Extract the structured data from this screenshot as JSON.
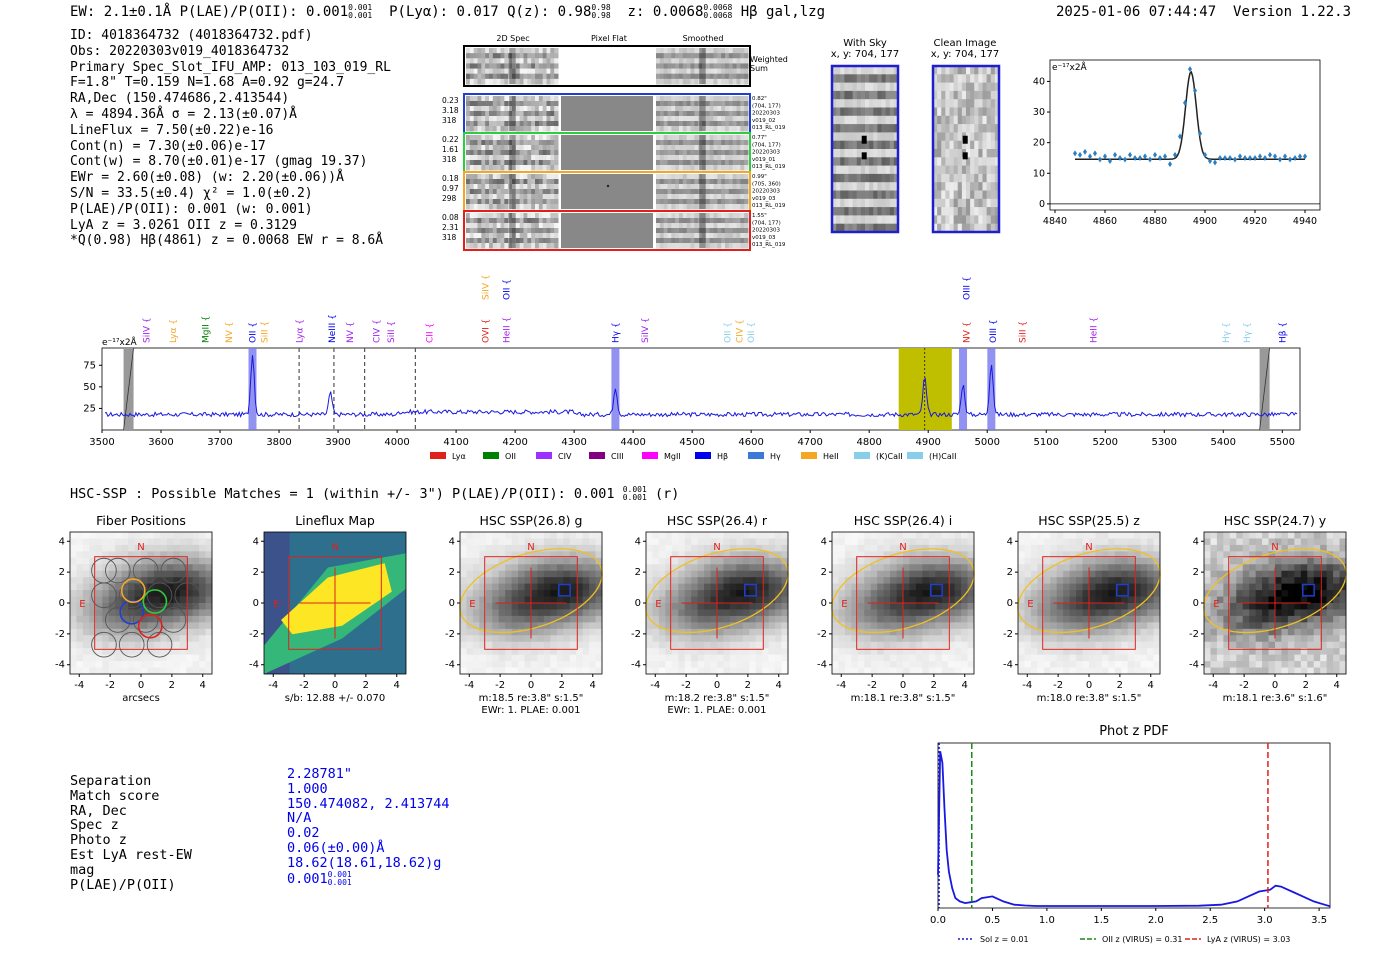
{
  "header": {
    "left": "EW: 2.1±0.1Å  P(LAE)/P(OII): 0.001",
    "left_sup": "0.001",
    "left_sub": "0.001",
    "plya": "P(Lyα): 0.017  Q(z): 0.98",
    "q_sup": "0.98",
    "q_sub": "0.98",
    "z": "z: 0.0068",
    "z_sup": "0.0068",
    "z_sub": "0.0068",
    "tail": "Hβ  gal,lzg",
    "datetime": "2025-01-06 07:44:47",
    "version": "Version 1.22.3"
  },
  "info": {
    "lines": [
      "ID: 4018364732 (4018364732.pdf)",
      "Obs: 20220303v019_4018364732",
      "Primary Spec_Slot_IFU_AMP: 013_103_019_RL",
      "F=1.8\"  T=0.159  N=1.68  A=0.92  g=24.7",
      "RA,Dec (150.474686,2.413544)",
      "λ = 4894.36Å  σ = 2.13(±0.07)Å",
      "LineFlux = 7.50(±0.22)e-16",
      "Cont(n) = 7.30(±0.06)e-17",
      "Cont(w) = 8.70(±0.01)e-17 (gmag 19.37)",
      "EWr = 2.60(±0.08) (w: 2.20(±0.06))Å",
      "S/N = 33.5(±0.4)  χ² = 1.0(±0.2)",
      "P(LAE)/P(OII): 0.001 (w: 0.001)",
      "LyA z = 3.0261  OII z = 0.3129",
      "*Q(0.98) Hβ(4861) z = 0.0068  EW r = 8.6Å"
    ]
  },
  "cutouts": {
    "col_titles": [
      "2D Spec",
      "Pixel Flat",
      "Smoothed"
    ],
    "weighted_label": "Weighted Sum",
    "rows": [
      {
        "stats": [
          "0.23",
          "3.18",
          "318"
        ],
        "meta": [
          "0.82\"",
          "(704, 177)",
          "20220303",
          "v019_02",
          "013_RL_019"
        ],
        "color": "#1f3fd0"
      },
      {
        "stats": [
          "0.22",
          "1.61",
          "318"
        ],
        "meta": [
          "0.77\"",
          "(704, 177)",
          "20220303",
          "v019_01",
          "013_RL_019"
        ],
        "color": "#2ecc40"
      },
      {
        "stats": [
          "0.18",
          "0.97",
          "298"
        ],
        "meta": [
          "0.99\"",
          "(705, 360)",
          "20220303",
          "v019_03",
          "013_RL_019"
        ],
        "color": "#f5a623"
      },
      {
        "stats": [
          "0.08",
          "2.31",
          "318"
        ],
        "meta": [
          "1.55\"",
          "(704, 177)",
          "20220303",
          "v019_03",
          "013_RL_019"
        ],
        "color": "#e0201b"
      }
    ],
    "with_sky_title": "With Sky",
    "with_sky_coords": "x, y: 704, 177",
    "clean_title": "Clean Image",
    "clean_coords": "x, y: 704, 177"
  },
  "line_zoom": {
    "unit": "e⁻¹⁷x2Å",
    "x": [
      4848,
      4850,
      4852,
      4854,
      4856,
      4858,
      4860,
      4862,
      4864,
      4866,
      4868,
      4870,
      4872,
      4874,
      4876,
      4878,
      4880,
      4882,
      4884,
      4886,
      4888,
      4890,
      4892,
      4894,
      4896,
      4898,
      4900,
      4902,
      4904,
      4906,
      4908,
      4910,
      4912,
      4914,
      4916,
      4918,
      4920,
      4922,
      4924,
      4926,
      4928,
      4930,
      4932,
      4934,
      4936,
      4938,
      4940
    ],
    "y": [
      16.5,
      16,
      17,
      15.5,
      16.5,
      14.5,
      15.5,
      14,
      16,
      15,
      14.5,
      16,
      15,
      15,
      15.5,
      14.5,
      16,
      15,
      15.5,
      13,
      16,
      22,
      33,
      44,
      37,
      23,
      16,
      14,
      13.5,
      15,
      15,
      15,
      14.5,
      15.5,
      15,
      15,
      15,
      15.5,
      15,
      16,
      15.5,
      14.5,
      15.5,
      14.5,
      15,
      15.5,
      15.5
    ],
    "fit": {
      "center": 4894.36,
      "sigma": 2.13,
      "cont": 14.6,
      "amp": 28.5
    },
    "xlim": [
      4838,
      4946
    ],
    "ylim": [
      -2,
      47
    ],
    "xticks": [
      "4840",
      "4860",
      "4880",
      "4900",
      "4920",
      "4940"
    ],
    "yticks": [
      "0",
      "10",
      "20",
      "30",
      "40"
    ]
  },
  "spectrum": {
    "unit": "e⁻¹⁷x2Å",
    "xlim": [
      3500,
      5530
    ],
    "ylim": [
      0,
      95
    ],
    "xticks": [
      "3500",
      "3600",
      "3700",
      "3800",
      "3900",
      "4000",
      "4100",
      "4200",
      "4300",
      "4400",
      "4500",
      "4600",
      "4700",
      "4800",
      "4900",
      "5000",
      "5100",
      "5200",
      "5300",
      "5400",
      "5500"
    ],
    "yticks": [
      "25",
      "50",
      "75"
    ],
    "baseline": 18,
    "lines_peaks": [
      {
        "w": 3755,
        "h": 70
      },
      {
        "w": 3887,
        "h": 25
      },
      {
        "w": 4370,
        "h": 32
      },
      {
        "w": 4894,
        "h": 43
      },
      {
        "w": 4959,
        "h": 35
      },
      {
        "w": 5007,
        "h": 60
      }
    ],
    "line_labels": [
      {
        "w": 3575,
        "t": "SiIV",
        "c": "#a020f0",
        "lvl": 0
      },
      {
        "w": 3620,
        "t": "Lyα",
        "c": "#f5a623",
        "lvl": 0
      },
      {
        "w": 3675,
        "t": "MgII",
        "c": "#008000",
        "lvl": 0
      },
      {
        "w": 3715,
        "t": "NV",
        "c": "#f5a623",
        "lvl": 0
      },
      {
        "w": 3755,
        "t": "OII",
        "c": "#0000ee",
        "lvl": 0
      },
      {
        "w": 3775,
        "t": "SiII",
        "c": "#f5a623",
        "lvl": 0
      },
      {
        "w": 3835,
        "t": "Lyα",
        "c": "#a020f0",
        "lvl": 0
      },
      {
        "w": 3890,
        "t": "NeIII",
        "c": "#0000ee",
        "lvl": 0
      },
      {
        "w": 3920,
        "t": "NV",
        "c": "#a020f0",
        "lvl": 0
      },
      {
        "w": 3965,
        "t": "CIV",
        "c": "#a020f0",
        "lvl": 0
      },
      {
        "w": 3990,
        "t": "SiII",
        "c": "#a020f0",
        "lvl": 0
      },
      {
        "w": 4055,
        "t": "CII",
        "c": "#ff00ff",
        "lvl": 0
      },
      {
        "w": 4150,
        "t": "OVI",
        "c": "#e0201b",
        "lvl": 0
      },
      {
        "w": 4185,
        "t": "HeII",
        "c": "#a020f0",
        "lvl": 0
      },
      {
        "w": 4150,
        "t": "SiIV",
        "c": "#f5a623",
        "lvl": 1
      },
      {
        "w": 4185,
        "t": "OII",
        "c": "#0000ee",
        "lvl": 1
      },
      {
        "w": 4370,
        "t": "Hγ",
        "c": "#0000ee",
        "lvl": 0
      },
      {
        "w": 4420,
        "t": "SiIV",
        "c": "#a020f0",
        "lvl": 0
      },
      {
        "w": 4560,
        "t": "OII",
        "c": "#87ceeb",
        "lvl": 0
      },
      {
        "w": 4580,
        "t": "CIV",
        "c": "#f5a623",
        "lvl": 0
      },
      {
        "w": 4600,
        "t": "OII",
        "c": "#87ceeb",
        "lvl": 0
      },
      {
        "w": 4965,
        "t": "NV",
        "c": "#e0201b",
        "lvl": 0
      },
      {
        "w": 4965,
        "t": "OIII",
        "c": "#0000ee",
        "lvl": 1
      },
      {
        "w": 5010,
        "t": "OIII",
        "c": "#0000ee",
        "lvl": 0
      },
      {
        "w": 5060,
        "t": "SiII",
        "c": "#e0201b",
        "lvl": 0
      },
      {
        "w": 5180,
        "t": "HeII",
        "c": "#a020f0",
        "lvl": 0
      },
      {
        "w": 5405,
        "t": "Hγ",
        "c": "#87ceeb",
        "lvl": 0
      },
      {
        "w": 5440,
        "t": "Hγ",
        "c": "#87ceeb",
        "lvl": 0
      },
      {
        "w": 5500,
        "t": "Hβ",
        "c": "#0000ee",
        "lvl": 0
      }
    ],
    "dashed_lines": [
      3834,
      3893,
      3945,
      4031
    ],
    "legend": [
      {
        "label": "Lyα",
        "color": "#e0201b"
      },
      {
        "label": "OII",
        "color": "#008000"
      },
      {
        "label": "CIV",
        "color": "#9b30ff"
      },
      {
        "label": "CIII",
        "color": "#800080"
      },
      {
        "label": "MgII",
        "color": "#ff00ff"
      },
      {
        "label": "Hβ",
        "color": "#0000ee"
      },
      {
        "label": "Hγ",
        "color": "#3c78d8"
      },
      {
        "label": "HeII",
        "color": "#f5a623"
      },
      {
        "label": "(K)CaII",
        "color": "#87ceeb"
      },
      {
        "label": "(H)CaII",
        "color": "#87ceeb"
      }
    ]
  },
  "hsc": {
    "title": "HSC-SSP : Possible Matches = 1 (within +/- 3\")  P(LAE)/P(OII): 0.001",
    "title_sup": "0.001",
    "title_sub": "0.001",
    "title_tail": "(r)",
    "panels": [
      {
        "title": "Fiber Positions",
        "cap1": "arcsecs",
        "cap2": "",
        "kind": "fiber"
      },
      {
        "title": "Lineflux Map",
        "cap1": "s/b: 12.88 +/- 0.070",
        "cap2": "",
        "kind": "lineflux"
      },
      {
        "title": "HSC SSP(26.8) g",
        "cap1": "m:18.5  re:3.8\"  s:1.5\"",
        "cap2": "EWr: 1. PLAE: 0.001",
        "kind": "img"
      },
      {
        "title": "HSC SSP(26.4) r",
        "cap1": "m:18.2  re:3.8\"  s:1.5\"",
        "cap2": "EWr: 1. PLAE: 0.001",
        "kind": "img"
      },
      {
        "title": "HSC SSP(26.4) i",
        "cap1": "m:18.1  re:3.8\"  s:1.5\"",
        "cap2": "",
        "kind": "img"
      },
      {
        "title": "HSC SSP(25.5) z",
        "cap1": "m:18.0  re:3.8\"  s:1.5\"",
        "cap2": "",
        "kind": "img"
      },
      {
        "title": "HSC SSP(24.7) y",
        "cap1": "m:18.1  re:3.6\"  s:1.6\"",
        "cap2": "",
        "kind": "imgy"
      }
    ],
    "axis_ticks": [
      "-4",
      "-2",
      "0",
      "2",
      "4"
    ],
    "n_label": "N",
    "e_label": "E"
  },
  "match": {
    "labels": [
      "Separation",
      "Match score",
      "RA, Dec",
      "Spec z",
      "Photo z",
      "Est LyA rest-EW",
      "mag",
      "P(LAE)/P(OII)"
    ],
    "values": [
      "2.28781\"",
      "1.000",
      "150.474082, 2.413744",
      "N/A",
      "0.02",
      "0.06(±0.00)Å",
      "18.62(18.61,18.62)g",
      "0.001"
    ],
    "plae_sup": "0.001",
    "plae_sub": "0.001"
  },
  "photz": {
    "title": "Phot z PDF",
    "xlim": [
      0,
      3.6
    ],
    "xticks": [
      "0.0",
      "0.5",
      "1.0",
      "1.5",
      "2.0",
      "2.5",
      "3.0",
      "3.5"
    ],
    "pdf_x": [
      0,
      0.02,
      0.04,
      0.06,
      0.08,
      0.1,
      0.13,
      0.16,
      0.2,
      0.25,
      0.3,
      0.35,
      0.4,
      0.5,
      0.6,
      0.7,
      0.8,
      0.9,
      1.0,
      1.5,
      2.0,
      2.4,
      2.6,
      2.75,
      2.85,
      2.95,
      3.05,
      3.1,
      3.15,
      3.25,
      3.35,
      3.45,
      3.55,
      3.6
    ],
    "pdf_y": [
      0.2,
      0.95,
      0.88,
      0.6,
      0.35,
      0.22,
      0.12,
      0.06,
      0.04,
      0.03,
      0.035,
      0.04,
      0.06,
      0.07,
      0.04,
      0.02,
      0.015,
      0.012,
      0.012,
      0.012,
      0.012,
      0.014,
      0.02,
      0.04,
      0.07,
      0.1,
      0.11,
      0.135,
      0.13,
      0.1,
      0.07,
      0.04,
      0.02,
      0.01
    ],
    "sol_z": 0.01,
    "oii_z": 0.31,
    "lya_z": 3.03,
    "legend": [
      "Sol z = 0.01",
      "OII z (VIRUS) = 0.31",
      "LyA z (VIRUS) = 3.03"
    ]
  }
}
